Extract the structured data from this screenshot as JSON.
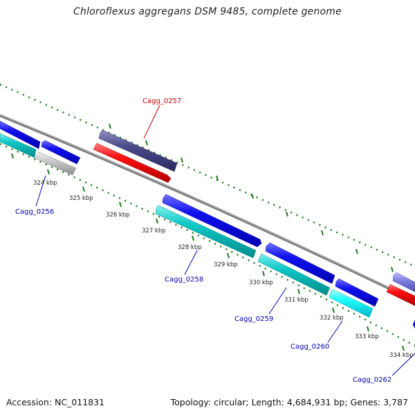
{
  "title": "Chloroflexus aggregans DSM 9485, complete genome",
  "footer": {
    "accession": "Accession: NC_011831",
    "summary": "Topology: circular; Length: 4,684,931 bp; Genes: 3,787"
  },
  "colors": {
    "backbone": "#808080",
    "tick": "#1a7a1a",
    "forward": "#0000ee",
    "reverse": "#00c0c0",
    "pseudo": "#c8c8c8",
    "rna": "#ff0000",
    "other": "#4a4a8a",
    "label_blue": "#0000aa",
    "label_red": "#cc0000"
  },
  "ticks": [
    {
      "kbp": 324,
      "label": "324 kbp"
    },
    {
      "kbp": 325,
      "label": "325 kbp"
    },
    {
      "kbp": 326,
      "label": "326 kbp"
    },
    {
      "kbp": 327,
      "label": "327 kbp"
    },
    {
      "kbp": 328,
      "label": "328 kbp"
    },
    {
      "kbp": 329,
      "label": "329 kbp"
    },
    {
      "kbp": 330,
      "label": "330 kbp"
    },
    {
      "kbp": 331,
      "label": "331 kbp"
    },
    {
      "kbp": 332,
      "label": "332 kbp"
    },
    {
      "kbp": 333,
      "label": "333 kbp"
    },
    {
      "kbp": 334,
      "label": "334 kbp"
    }
  ],
  "gene_labels": [
    {
      "name": "Cagg_0256"
    },
    {
      "name": "Cagg_0257"
    },
    {
      "name": "Cagg_0258"
    },
    {
      "name": "Cagg_0259"
    },
    {
      "name": "Cagg_0260"
    },
    {
      "name": "Cagg_0262"
    }
  ]
}
